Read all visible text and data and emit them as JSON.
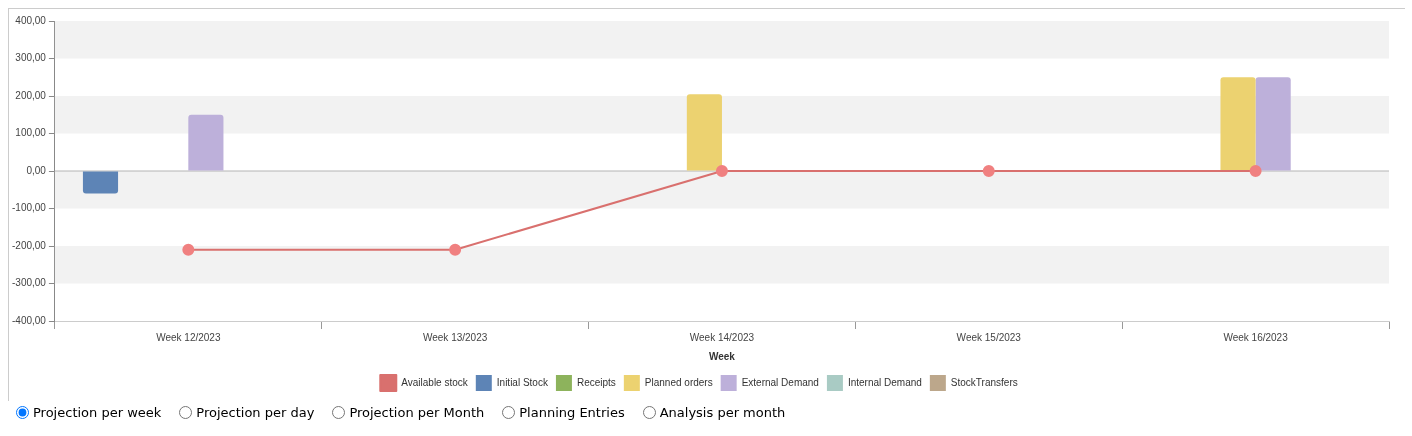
{
  "chart_data": {
    "type": "bar",
    "xlabel": "Week",
    "categories": [
      "Week 12/2023",
      "Week 13/2023",
      "Week 14/2023",
      "Week 15/2023",
      "Week 16/2023"
    ],
    "series": [
      {
        "name": "Initial Stock",
        "color": "#5d84b6",
        "values": [
          -60,
          null,
          null,
          null,
          null
        ]
      },
      {
        "name": "Receipts",
        "color": "#8db35c",
        "values": [
          null,
          null,
          null,
          null,
          null
        ]
      },
      {
        "name": "Planned orders",
        "color": "#ecd270",
        "values": [
          null,
          null,
          205,
          null,
          250
        ]
      },
      {
        "name": "External Demand",
        "color": "#bdb0da",
        "values": [
          150,
          null,
          null,
          null,
          250
        ]
      },
      {
        "name": "Internal Demand",
        "color": "#a9cbc4",
        "values": [
          null,
          null,
          null,
          null,
          null
        ]
      },
      {
        "name": "StockTransfers",
        "color": "#bca78b",
        "values": [
          null,
          null,
          null,
          null,
          null
        ]
      },
      {
        "name": "Available stock",
        "color": "#d9706e",
        "type": "line",
        "marker": "circle",
        "values": [
          -210,
          -210,
          0,
          0,
          0
        ]
      }
    ],
    "ylim": [
      -400,
      400
    ],
    "yticks": [
      {
        "value": -400,
        "label": "-400,00"
      },
      {
        "value": -300,
        "label": "-300,00"
      },
      {
        "value": -200,
        "label": "-200,00"
      },
      {
        "value": -100,
        "label": "-100,00"
      },
      {
        "value": 0,
        "label": "0,00"
      },
      {
        "value": 100,
        "label": "100,00"
      },
      {
        "value": 200,
        "label": "200,00"
      },
      {
        "value": 300,
        "label": "300,00"
      },
      {
        "value": 400,
        "label": "400,00"
      }
    ],
    "bands": [
      {
        "axis": "y",
        "from": 300,
        "to": 400,
        "color": "#f2f2f2"
      },
      {
        "axis": "y",
        "from": 100,
        "to": 200,
        "color": "#f2f2f2"
      },
      {
        "axis": "y",
        "from": -100,
        "to": 0,
        "color": "#f2f2f2"
      },
      {
        "axis": "y",
        "from": -300,
        "to": -200,
        "color": "#f2f2f2"
      }
    ],
    "ref_lines": [
      {
        "axis": "y",
        "value": 0,
        "color": "#b4b4b4"
      }
    ],
    "legend": "bottom",
    "annotations": [
      "Projection per week",
      "Projection per day",
      "Projection per Month",
      "Planning Entries",
      "Analysis per month"
    ]
  }
}
